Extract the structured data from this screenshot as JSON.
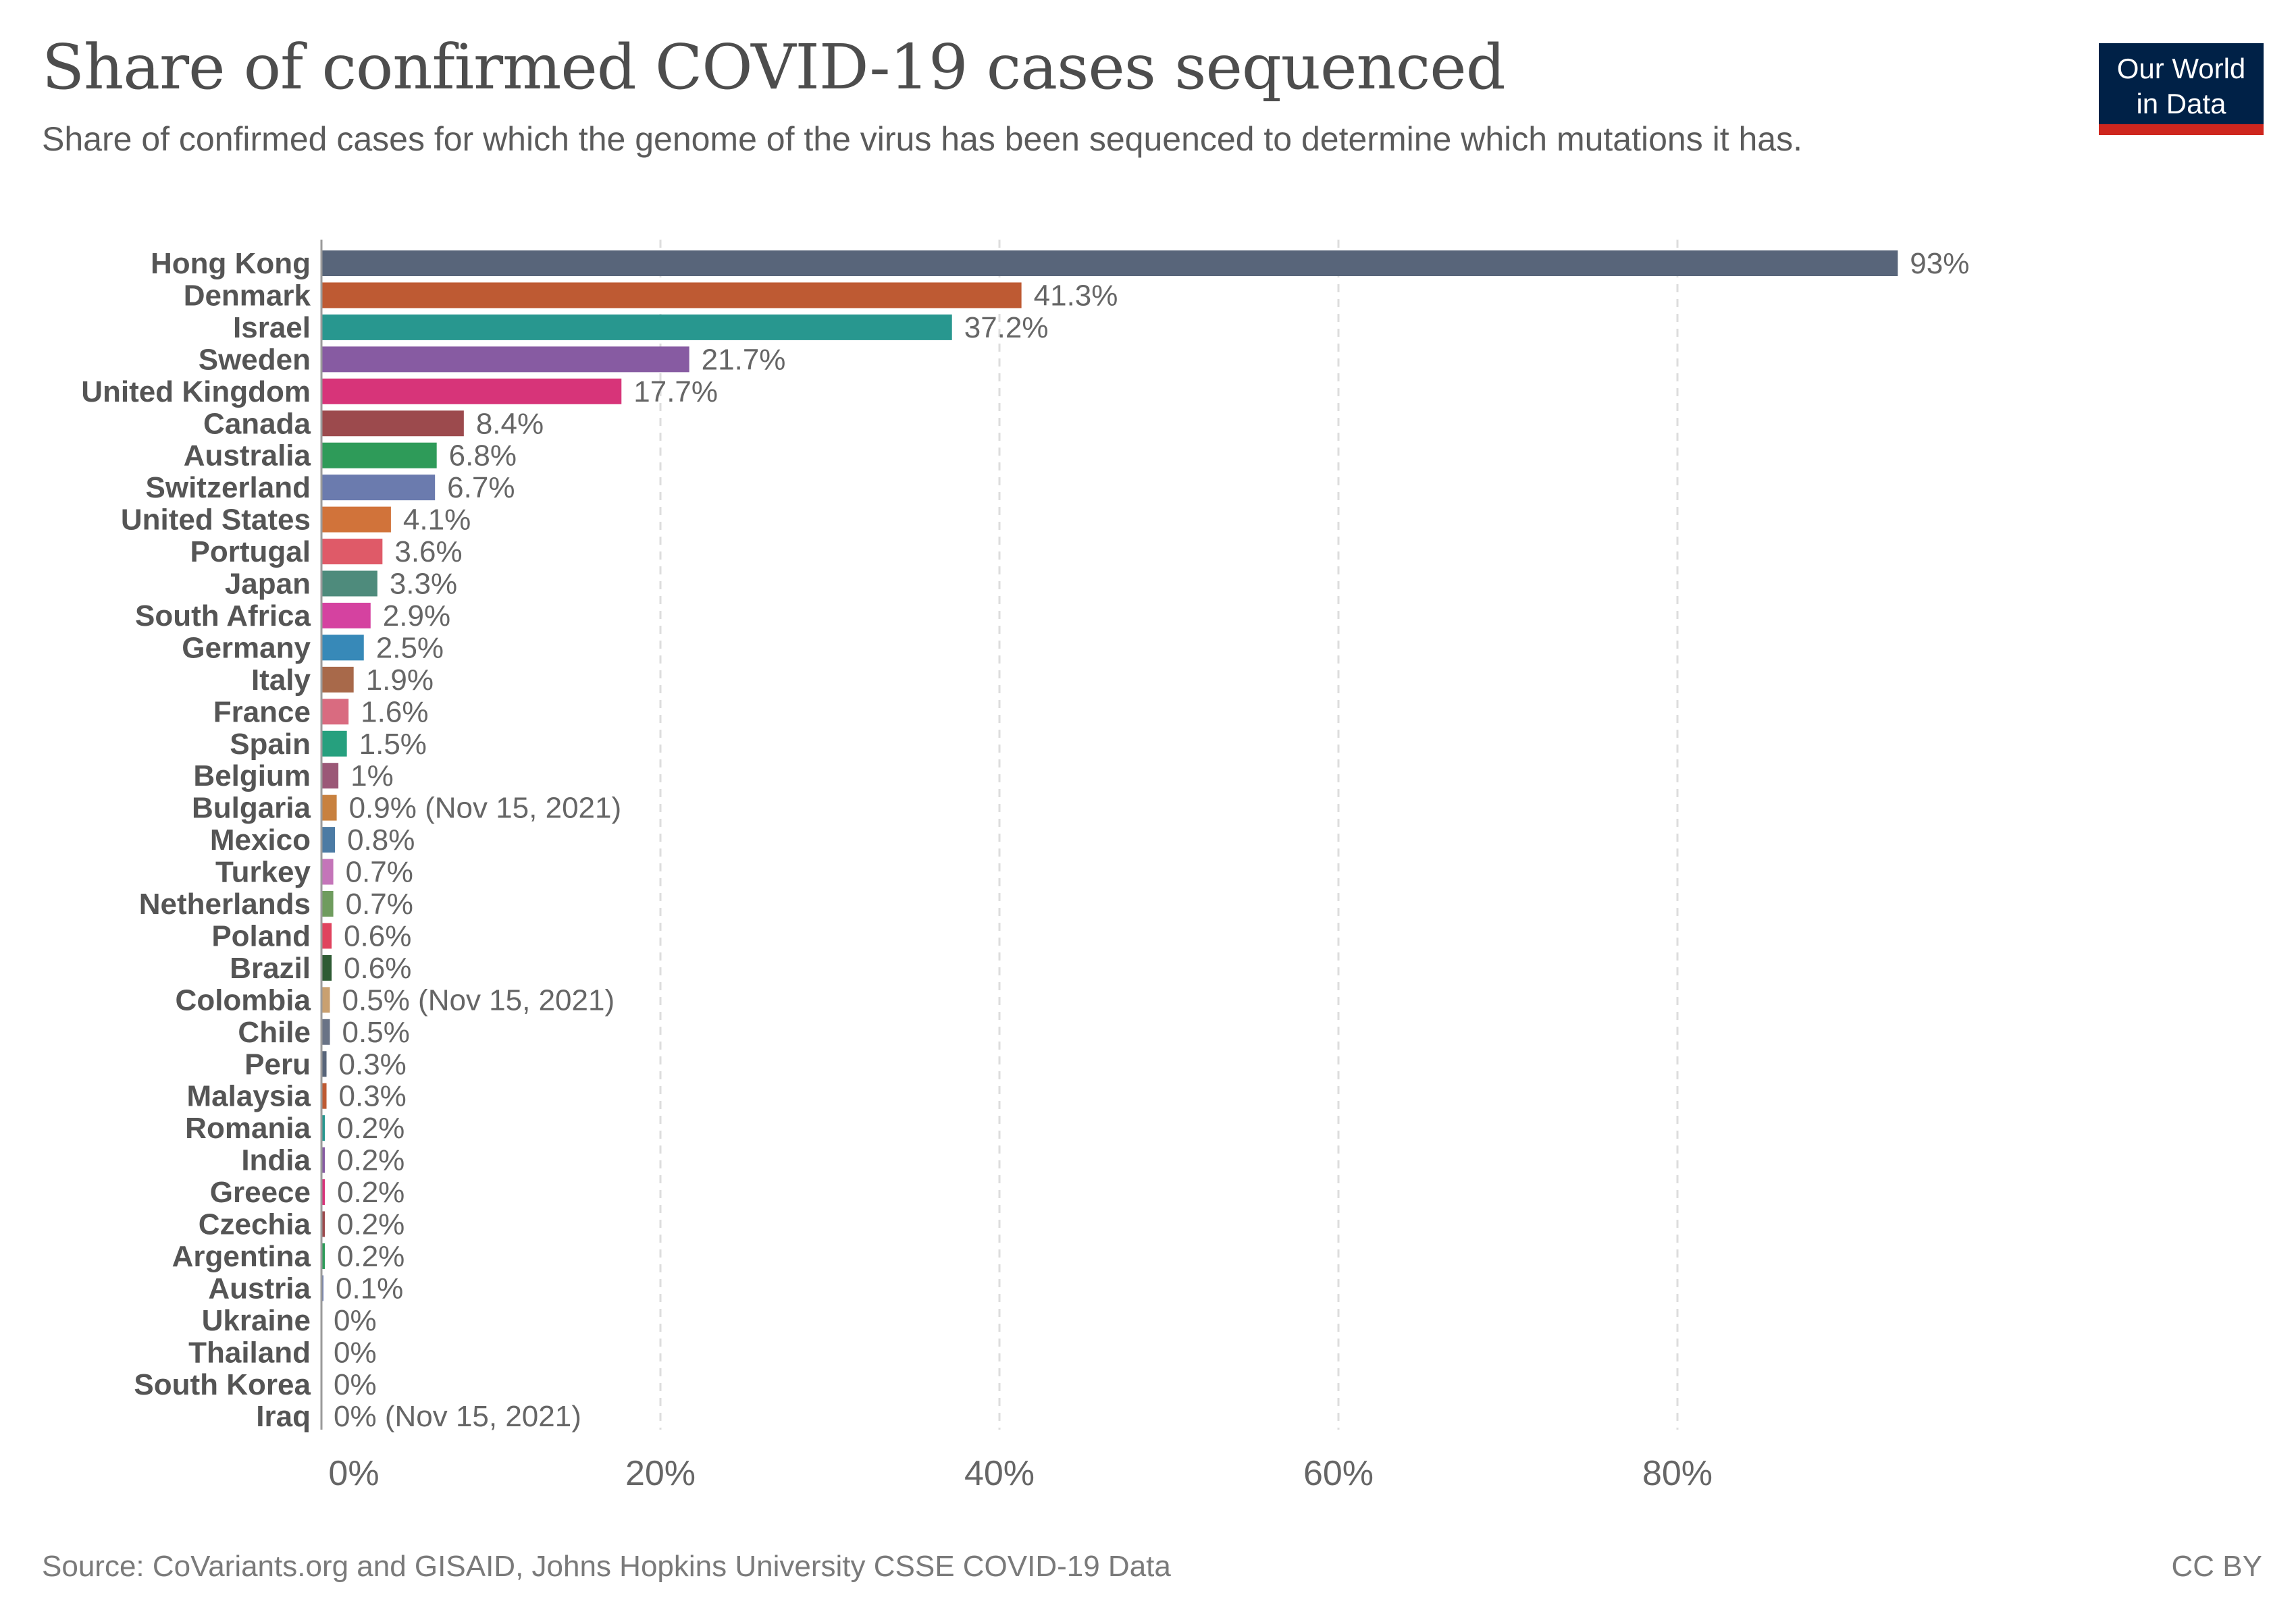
{
  "header": {
    "title": "Share of confirmed COVID-19 cases sequenced",
    "subtitle": "Share of confirmed cases for which the genome of the virus has been sequenced to determine which mutations it has.",
    "logo_line1": "Our World",
    "logo_line2": "in Data"
  },
  "footer": {
    "source": "Source: CoVariants.org and GISAID, Johns Hopkins University CSSE COVID-19 Data",
    "license": "CC BY"
  },
  "chart_data": {
    "type": "bar",
    "orientation": "horizontal",
    "title": "Share of confirmed COVID-19 cases sequenced",
    "xlabel": "",
    "ylabel": "",
    "xlim": [
      0,
      100
    ],
    "xticks": [
      0,
      20,
      40,
      60,
      80
    ],
    "xtick_labels": [
      "0%",
      "20%",
      "40%",
      "60%",
      "80%"
    ],
    "grid": "vertical dashed",
    "bars": [
      {
        "category": "Hong Kong",
        "value": 93,
        "label": "93%",
        "color": "#58657a"
      },
      {
        "category": "Denmark",
        "value": 41.3,
        "label": "41.3%",
        "color": "#be5a33"
      },
      {
        "category": "Israel",
        "value": 37.2,
        "label": "37.2%",
        "color": "#28978f"
      },
      {
        "category": "Sweden",
        "value": 21.7,
        "label": "21.7%",
        "color": "#875ba2"
      },
      {
        "category": "United Kingdom",
        "value": 17.7,
        "label": "17.7%",
        "color": "#d73479"
      },
      {
        "category": "Canada",
        "value": 8.4,
        "label": "8.4%",
        "color": "#9c4a4d"
      },
      {
        "category": "Australia",
        "value": 6.8,
        "label": "6.8%",
        "color": "#2e9b59"
      },
      {
        "category": "Switzerland",
        "value": 6.7,
        "label": "6.7%",
        "color": "#6b7bae"
      },
      {
        "category": "United States",
        "value": 4.1,
        "label": "4.1%",
        "color": "#d1733a"
      },
      {
        "category": "Portugal",
        "value": 3.6,
        "label": "3.6%",
        "color": "#df5a68"
      },
      {
        "category": "Japan",
        "value": 3.3,
        "label": "3.3%",
        "color": "#4e8b7c"
      },
      {
        "category": "South Africa",
        "value": 2.9,
        "label": "2.9%",
        "color": "#d542a0"
      },
      {
        "category": "Germany",
        "value": 2.5,
        "label": "2.5%",
        "color": "#3789b8"
      },
      {
        "category": "Italy",
        "value": 1.9,
        "label": "1.9%",
        "color": "#a8694a"
      },
      {
        "category": "France",
        "value": 1.6,
        "label": "1.6%",
        "color": "#d96b80"
      },
      {
        "category": "Spain",
        "value": 1.5,
        "label": "1.5%",
        "color": "#26a07e"
      },
      {
        "category": "Belgium",
        "value": 1,
        "label": "1%",
        "color": "#9b5877"
      },
      {
        "category": "Bulgaria",
        "value": 0.9,
        "label": "0.9% (Nov 15, 2021)",
        "color": "#c8813f"
      },
      {
        "category": "Mexico",
        "value": 0.8,
        "label": "0.8%",
        "color": "#4c7ba4"
      },
      {
        "category": "Turkey",
        "value": 0.7,
        "label": "0.7%",
        "color": "#c475b9"
      },
      {
        "category": "Netherlands",
        "value": 0.7,
        "label": "0.7%",
        "color": "#6f9c5e"
      },
      {
        "category": "Poland",
        "value": 0.6,
        "label": "0.6%",
        "color": "#e0435e"
      },
      {
        "category": "Brazil",
        "value": 0.6,
        "label": "0.6%",
        "color": "#2e5b34"
      },
      {
        "category": "Colombia",
        "value": 0.5,
        "label": "0.5% (Nov 15, 2021)",
        "color": "#c9a070"
      },
      {
        "category": "Chile",
        "value": 0.5,
        "label": "0.5%",
        "color": "#697386"
      },
      {
        "category": "Peru",
        "value": 0.3,
        "label": "0.3%",
        "color": "#58657a"
      },
      {
        "category": "Malaysia",
        "value": 0.3,
        "label": "0.3%",
        "color": "#be5a33"
      },
      {
        "category": "Romania",
        "value": 0.2,
        "label": "0.2%",
        "color": "#28978f"
      },
      {
        "category": "India",
        "value": 0.2,
        "label": "0.2%",
        "color": "#875ba2"
      },
      {
        "category": "Greece",
        "value": 0.2,
        "label": "0.2%",
        "color": "#d73479"
      },
      {
        "category": "Czechia",
        "value": 0.2,
        "label": "0.2%",
        "color": "#9c4a4d"
      },
      {
        "category": "Argentina",
        "value": 0.2,
        "label": "0.2%",
        "color": "#2e9b59"
      },
      {
        "category": "Austria",
        "value": 0.1,
        "label": "0.1%",
        "color": "#6b7bae"
      },
      {
        "category": "Ukraine",
        "value": 0,
        "label": "0%",
        "color": "#d1733a"
      },
      {
        "category": "Thailand",
        "value": 0,
        "label": "0%",
        "color": "#df5a68"
      },
      {
        "category": "South Korea",
        "value": 0,
        "label": "0%",
        "color": "#4e8b7c"
      },
      {
        "category": "Iraq",
        "value": 0,
        "label": "0% (Nov 15, 2021)",
        "color": "#d542a0"
      }
    ]
  }
}
